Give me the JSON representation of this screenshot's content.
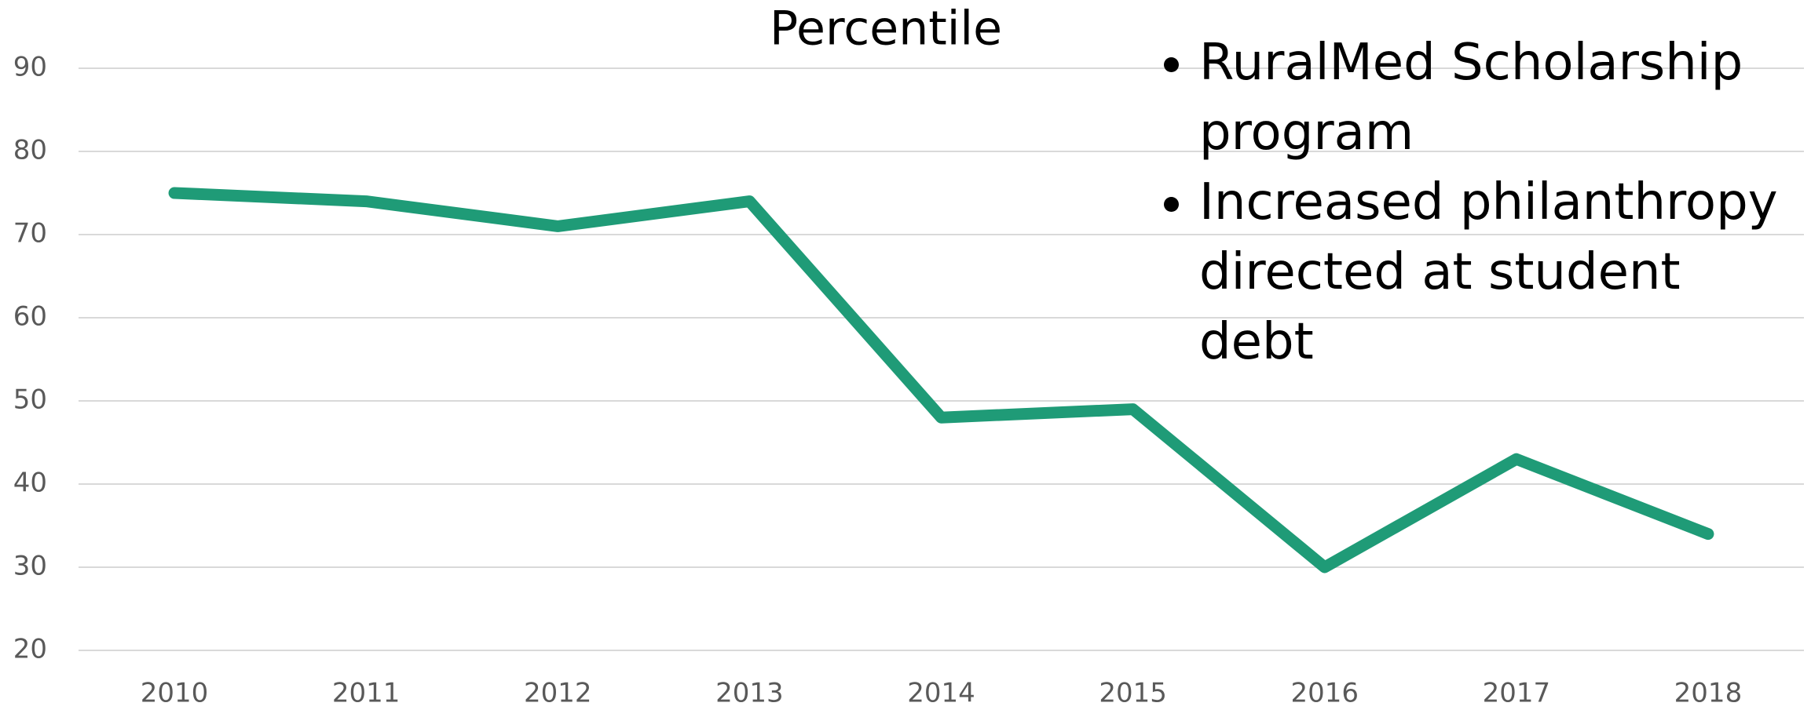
{
  "chart_data": {
    "type": "line",
    "title": "Percentile",
    "categories": [
      "2010",
      "2011",
      "2012",
      "2013",
      "2014",
      "2015",
      "2016",
      "2017",
      "2018"
    ],
    "values": [
      75,
      74,
      71,
      74,
      48,
      49,
      30,
      43,
      34
    ],
    "color": "#1f9b77",
    "ylim": [
      20,
      90
    ],
    "yticks": [
      20,
      30,
      40,
      50,
      60,
      70,
      80,
      90
    ],
    "grid": true,
    "annotations": [
      "RuralMed Scholarship program",
      "Increased philanthropy directed at student debt"
    ]
  }
}
